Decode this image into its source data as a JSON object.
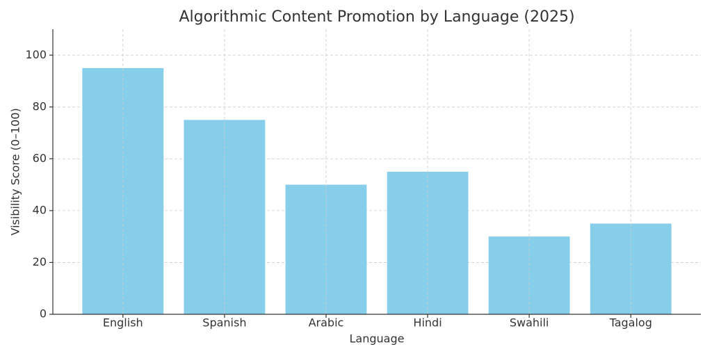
{
  "chart_data": {
    "type": "bar",
    "title": "Algorithmic Content Promotion by Language (2025)",
    "x_label": "Language",
    "y_label": "Visibility Score (0–100)",
    "categories": [
      "English",
      "Spanish",
      "Arabic",
      "Hindi",
      "Swahili",
      "Tagalog"
    ],
    "values": [
      95,
      75,
      50,
      55,
      30,
      35
    ],
    "color": "#87ceeb",
    "ylim": [
      0,
      110
    ],
    "yticks": [
      0,
      20,
      40,
      60,
      80,
      100
    ],
    "grid": true
  }
}
